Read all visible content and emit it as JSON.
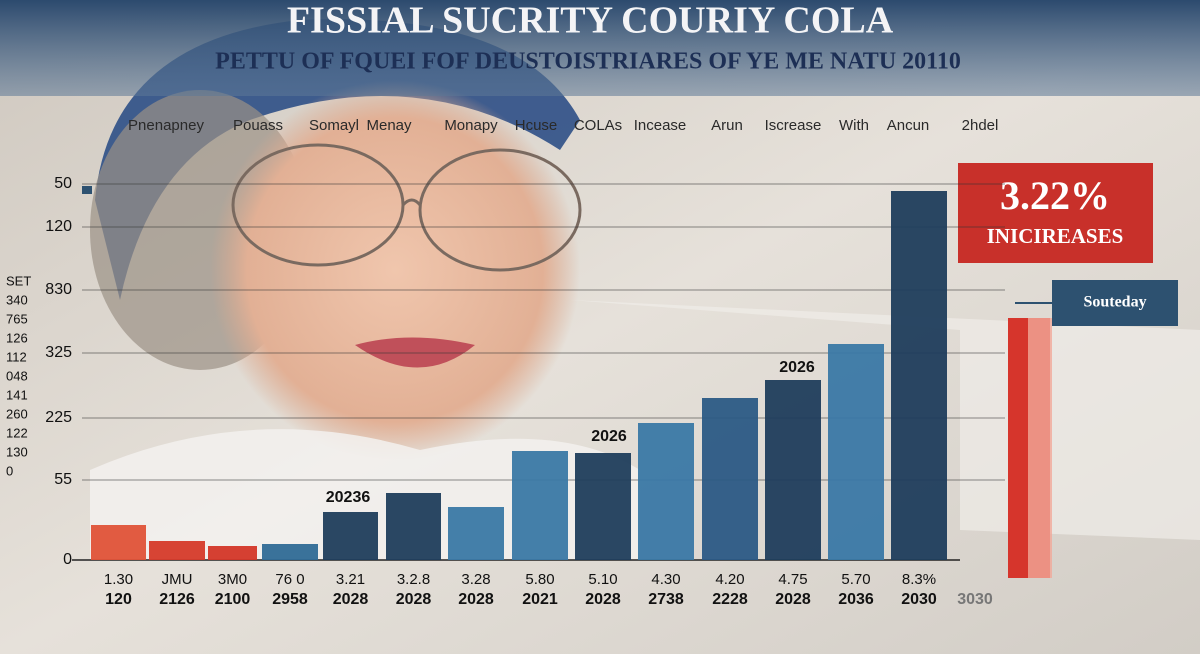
{
  "header": {
    "title": "FISSIAL SUCRITY COURIY COLA",
    "subtitle": "PETTU OF FQUEI FOF DEUSTOISTRIARES OF YE ME NATU 20110"
  },
  "column_headers": [
    "Pnenapney",
    "Pouass",
    "Somayl",
    "Menay",
    "Monapy",
    "Hcuse",
    "COLAs",
    "Incease",
    "Arun",
    "Iscrease",
    "With",
    "Ancun",
    "2hdel"
  ],
  "axis_labels": [
    "50",
    "120",
    "830",
    "325",
    "225",
    "55",
    "0"
  ],
  "side_labels": [
    "SET",
    "340",
    "765",
    "126",
    "112",
    "048",
    "141",
    "260",
    "122",
    "130",
    "0"
  ],
  "bars": {
    "captions_top": [
      "1.30",
      "JMU",
      "3M0",
      "76 0",
      "3.21",
      "3.2.8",
      "3.28",
      "5.80",
      "5.10",
      "4.30",
      "4.20",
      "4.75",
      "5.70",
      "8.3%"
    ],
    "captions_bottom": [
      "120",
      "2126",
      "2100",
      "2958",
      "2028",
      "2028",
      "2028",
      "2021",
      "2028",
      "2738",
      "2228",
      "2028",
      "2036",
      "2030"
    ],
    "extra_caption": "3030",
    "annotations": [
      "20236",
      "2026",
      "2026"
    ]
  },
  "callout": {
    "value": "3.22%",
    "label": "INICIREASES",
    "tab": "Souteday"
  }
}
